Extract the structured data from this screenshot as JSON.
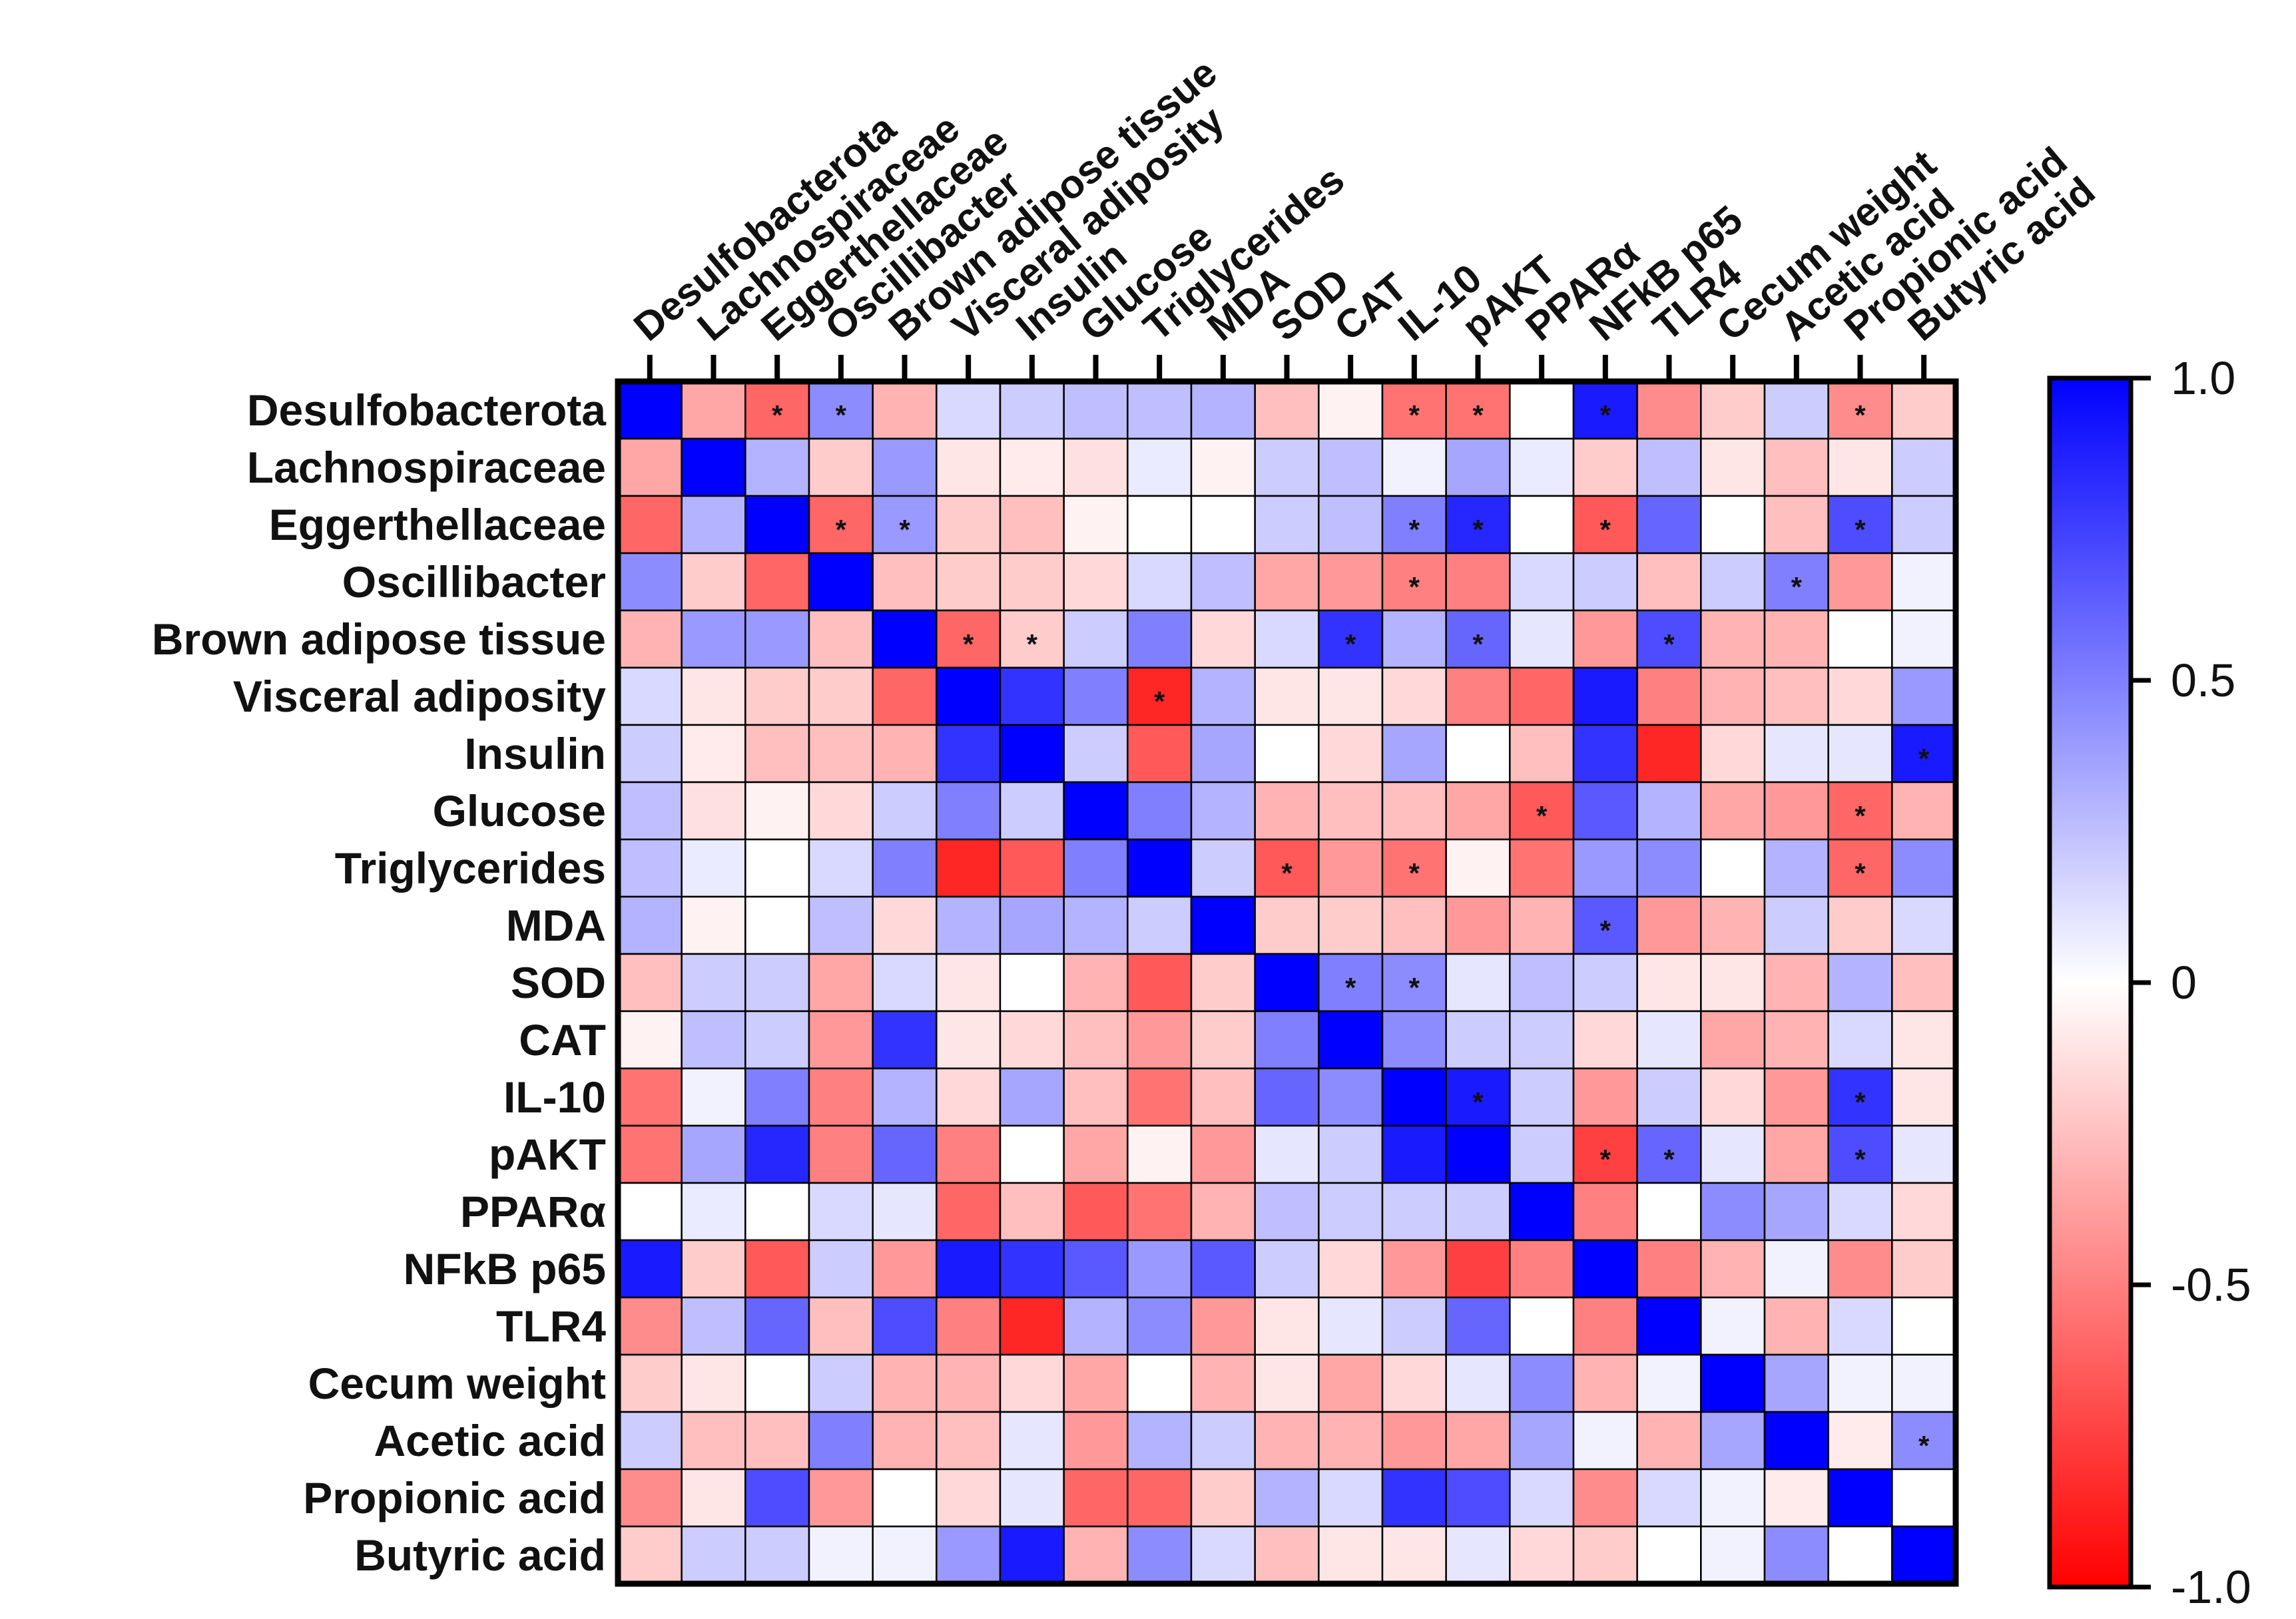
{
  "chart_data": {
    "type": "heatmap",
    "title": "",
    "variables": [
      "Desulfobacterota",
      "Lachnospiraceae",
      "Eggerthellaceae",
      "Oscillibacter",
      "Brown adipose tissue",
      "Visceral adiposity",
      "Insulin",
      "Glucose",
      "Triglycerides",
      "MDA",
      "SOD",
      "CAT",
      "IL-10",
      "pAKT",
      "PPARα",
      "NFkB p65",
      "TLR4",
      "Cecum weight",
      "Acetic acid",
      "Propionic acid",
      "Butyric acid"
    ],
    "row_labels": [
      "Desulfobacterota",
      "Lachnospiraceae",
      "Eggerthellaceae",
      "Oscillibacter",
      "Brown adipose tissue",
      "Visceral adiposity",
      "Insulin",
      "Glucose",
      "Triglycerides",
      "MDA",
      "SOD",
      "CAT",
      "IL-10",
      "pAKT",
      "PPARα",
      "NFkB p65",
      "TLR4",
      "Cecum weight ",
      "Acetic acid",
      "Propionic acid",
      "Butyric acid"
    ],
    "values": [
      [
        1.0,
        -0.35,
        -0.6,
        0.45,
        -0.3,
        0.15,
        0.2,
        0.25,
        0.25,
        0.3,
        -0.25,
        -0.05,
        -0.55,
        -0.55,
        0.0,
        0.9,
        -0.45,
        -0.2,
        0.2,
        -0.45,
        -0.2
      ],
      [
        -0.35,
        1.0,
        0.3,
        -0.2,
        0.4,
        -0.1,
        -0.08,
        -0.12,
        0.08,
        -0.05,
        0.2,
        0.25,
        0.05,
        0.35,
        0.08,
        -0.2,
        0.25,
        -0.1,
        -0.25,
        -0.1,
        0.2
      ],
      [
        -0.6,
        0.3,
        1.0,
        -0.6,
        0.4,
        -0.2,
        -0.25,
        -0.05,
        0.0,
        0.0,
        0.2,
        0.25,
        0.5,
        0.85,
        0.0,
        -0.65,
        0.6,
        0.0,
        -0.25,
        0.7,
        0.2
      ],
      [
        0.45,
        -0.2,
        -0.6,
        1.0,
        -0.25,
        -0.2,
        -0.2,
        -0.15,
        0.15,
        0.25,
        -0.35,
        -0.4,
        -0.5,
        -0.5,
        0.15,
        0.2,
        -0.25,
        0.2,
        0.5,
        -0.4,
        0.05
      ],
      [
        -0.3,
        0.4,
        0.4,
        -0.25,
        1.0,
        -0.6,
        -0.2,
        0.2,
        0.5,
        -0.15,
        0.15,
        0.8,
        0.3,
        0.6,
        0.1,
        -0.4,
        0.7,
        -0.3,
        -0.3,
        0.0,
        0.05
      ],
      [
        0.15,
        -0.1,
        -0.2,
        -0.2,
        -0.6,
        1.0,
        0.8,
        0.5,
        -0.85,
        0.3,
        -0.1,
        -0.1,
        -0.15,
        -0.5,
        -0.6,
        0.9,
        -0.5,
        -0.3,
        -0.25,
        -0.15,
        0.4
      ],
      [
        0.2,
        -0.08,
        -0.25,
        -0.25,
        -0.3,
        0.8,
        1.0,
        0.2,
        -0.65,
        0.35,
        0.0,
        -0.15,
        0.35,
        0.0,
        -0.25,
        0.8,
        -0.85,
        -0.15,
        0.1,
        0.1,
        0.9
      ],
      [
        0.25,
        -0.12,
        -0.05,
        -0.15,
        0.2,
        0.5,
        0.2,
        1.0,
        0.5,
        0.3,
        -0.3,
        -0.25,
        -0.25,
        -0.35,
        -0.65,
        0.65,
        0.3,
        -0.35,
        -0.4,
        -0.6,
        -0.3
      ],
      [
        0.25,
        0.08,
        0.0,
        0.15,
        0.5,
        -0.85,
        -0.65,
        0.5,
        1.0,
        0.2,
        -0.65,
        -0.4,
        -0.55,
        -0.05,
        -0.55,
        0.4,
        0.45,
        0.0,
        0.3,
        -0.6,
        0.45
      ],
      [
        0.3,
        -0.05,
        0.0,
        0.25,
        -0.15,
        0.3,
        0.35,
        0.3,
        0.2,
        1.0,
        -0.2,
        -0.2,
        -0.25,
        -0.4,
        -0.3,
        0.65,
        -0.4,
        -0.3,
        0.2,
        -0.2,
        0.15
      ],
      [
        -0.25,
        0.2,
        0.2,
        -0.35,
        0.15,
        -0.1,
        0.0,
        -0.3,
        -0.65,
        -0.2,
        1.0,
        0.5,
        0.45,
        0.1,
        0.25,
        0.2,
        -0.1,
        -0.1,
        -0.3,
        0.3,
        -0.25
      ],
      [
        -0.05,
        0.25,
        0.2,
        -0.4,
        0.8,
        -0.1,
        -0.15,
        -0.25,
        -0.4,
        -0.2,
        0.5,
        1.0,
        0.45,
        0.2,
        0.2,
        -0.15,
        0.1,
        -0.35,
        -0.3,
        0.15,
        -0.1
      ],
      [
        -0.55,
        0.05,
        0.5,
        -0.5,
        0.3,
        -0.15,
        0.35,
        -0.25,
        -0.55,
        -0.25,
        0.6,
        0.45,
        1.0,
        0.9,
        0.2,
        -0.4,
        0.2,
        -0.15,
        -0.4,
        0.8,
        -0.1
      ],
      [
        -0.55,
        0.35,
        0.85,
        -0.5,
        0.6,
        -0.5,
        0.0,
        -0.35,
        -0.05,
        -0.4,
        0.1,
        0.2,
        0.9,
        1.0,
        0.2,
        -0.75,
        0.6,
        0.1,
        -0.35,
        0.7,
        0.1
      ],
      [
        0.0,
        0.08,
        0.0,
        0.15,
        0.1,
        -0.6,
        -0.25,
        -0.65,
        -0.55,
        -0.3,
        0.25,
        0.2,
        0.2,
        0.2,
        1.0,
        -0.5,
        0.0,
        0.45,
        0.35,
        0.15,
        -0.15
      ],
      [
        0.9,
        -0.2,
        -0.65,
        0.2,
        -0.4,
        0.9,
        0.8,
        0.65,
        0.4,
        0.65,
        0.2,
        -0.15,
        -0.4,
        -0.75,
        -0.5,
        1.0,
        -0.5,
        -0.3,
        0.05,
        -0.45,
        -0.2
      ],
      [
        -0.45,
        0.25,
        0.6,
        -0.25,
        0.7,
        -0.5,
        -0.85,
        0.3,
        0.45,
        -0.4,
        -0.1,
        0.1,
        0.2,
        0.6,
        0.0,
        -0.5,
        1.0,
        0.05,
        -0.3,
        0.15,
        0.0
      ],
      [
        -0.2,
        -0.1,
        0.0,
        0.2,
        -0.3,
        -0.3,
        -0.15,
        -0.35,
        0.0,
        -0.3,
        -0.1,
        -0.35,
        -0.15,
        0.1,
        0.45,
        -0.3,
        0.05,
        1.0,
        0.35,
        0.05,
        0.05
      ],
      [
        0.2,
        -0.25,
        -0.25,
        0.5,
        -0.3,
        -0.25,
        0.1,
        -0.4,
        0.3,
        0.2,
        -0.3,
        -0.3,
        -0.4,
        -0.35,
        0.35,
        0.05,
        -0.3,
        0.35,
        1.0,
        -0.08,
        0.45
      ],
      [
        -0.45,
        -0.1,
        0.7,
        -0.4,
        0.0,
        -0.15,
        0.1,
        -0.6,
        -0.6,
        -0.2,
        0.3,
        0.15,
        0.8,
        0.7,
        0.15,
        -0.45,
        0.15,
        0.05,
        -0.08,
        1.0,
        0.0
      ],
      [
        -0.2,
        0.2,
        0.2,
        0.05,
        0.05,
        0.4,
        0.9,
        -0.3,
        0.45,
        0.15,
        -0.25,
        -0.1,
        -0.1,
        0.1,
        -0.15,
        -0.2,
        0.0,
        0.05,
        0.45,
        0.0,
        1.0
      ]
    ],
    "significant": [
      [
        0,
        2
      ],
      [
        0,
        3
      ],
      [
        0,
        12
      ],
      [
        0,
        13
      ],
      [
        0,
        15
      ],
      [
        0,
        19
      ],
      [
        2,
        3
      ],
      [
        2,
        4
      ],
      [
        2,
        12
      ],
      [
        2,
        13
      ],
      [
        2,
        15
      ],
      [
        2,
        19
      ],
      [
        3,
        12
      ],
      [
        3,
        18
      ],
      [
        4,
        5
      ],
      [
        4,
        6
      ],
      [
        4,
        11
      ],
      [
        4,
        13
      ],
      [
        4,
        16
      ],
      [
        5,
        8
      ],
      [
        6,
        20
      ],
      [
        7,
        14
      ],
      [
        7,
        19
      ],
      [
        8,
        10
      ],
      [
        8,
        12
      ],
      [
        8,
        19
      ],
      [
        9,
        15
      ],
      [
        10,
        11
      ],
      [
        10,
        12
      ],
      [
        12,
        13
      ],
      [
        12,
        19
      ],
      [
        13,
        15
      ],
      [
        13,
        16
      ],
      [
        13,
        19
      ],
      [
        18,
        20
      ]
    ],
    "significance_marker": "*",
    "colorbar": {
      "range": [
        -1.0,
        1.0
      ],
      "ticks": [
        1.0,
        0.5,
        0,
        -0.5,
        -1.0
      ],
      "tick_labels": [
        "1.0",
        "0.5",
        "0",
        "-0.5",
        "-1.0"
      ],
      "colors": {
        "positive": "#0000ff",
        "zero": "#ffffff",
        "negative": "#ff0000"
      }
    }
  }
}
